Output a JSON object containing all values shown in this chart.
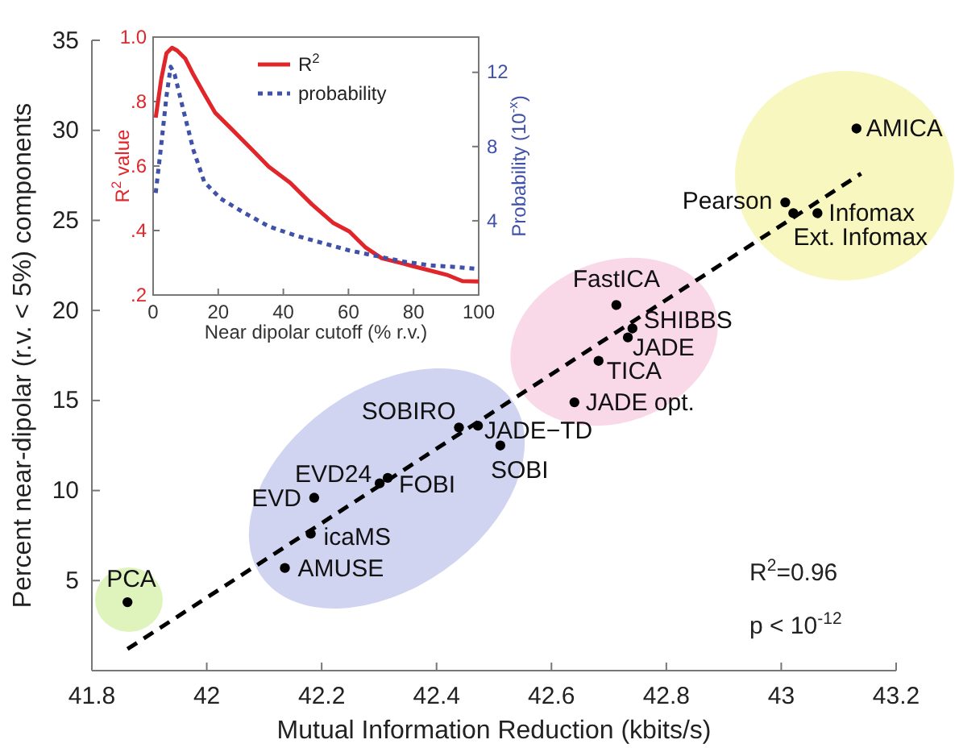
{
  "chart_data": [
    {
      "type": "scatter",
      "xlabel": "Mutual Information Reduction (kbits/s)",
      "ylabel": "Percent near-dipolar (r.v. < 5%) components",
      "xlim": [
        41.8,
        43.2
      ],
      "xticks": [
        41.8,
        42,
        42.2,
        42.4,
        42.6,
        42.8,
        43,
        43.2
      ],
      "ylim": [
        0,
        35
      ],
      "yticks": [
        5,
        10,
        15,
        20,
        25,
        30,
        35
      ],
      "grid": false,
      "legend": false,
      "series": [
        {
          "color": "#000000",
          "marker": "circle",
          "x": [
            41.862,
            42.136,
            42.181,
            42.187,
            42.301,
            42.315,
            42.439,
            42.472,
            42.511,
            42.64,
            42.682,
            42.733,
            42.741,
            42.713,
            43.007,
            43.021,
            43.063,
            43.131
          ],
          "values": [
            3.8,
            5.7,
            7.6,
            9.6,
            10.4,
            10.7,
            13.5,
            13.6,
            12.5,
            14.9,
            17.2,
            18.5,
            19.0,
            20.3,
            26.0,
            25.4,
            25.4,
            30.1
          ]
        },
        {
          "type": "line",
          "color": "#000000",
          "line_style": "dashed",
          "marker": "none",
          "x": [
            41.862,
            43.139
          ],
          "values": [
            1.2,
            27.6
          ]
        }
      ],
      "annotations": [
        {
          "text": "PCA",
          "x": 41.862,
          "y": 3.75
        },
        {
          "text": "AMUSE",
          "x": 42.136,
          "y": 5.7
        },
        {
          "text": "icaMS",
          "x": 42.181,
          "y": 7.6
        },
        {
          "text": "EVD",
          "x": 42.187,
          "y": 9.6
        },
        {
          "text": "EVD24",
          "x": 42.301,
          "y": 10.4
        },
        {
          "text": "FOBI",
          "x": 42.315,
          "y": 10.7
        },
        {
          "text": "SOBIRO",
          "x": 42.439,
          "y": 13.5
        },
        {
          "text": "JADE−TD",
          "x": 42.472,
          "y": 13.6
        },
        {
          "text": "SOBI",
          "x": 42.511,
          "y": 12.5
        },
        {
          "text": "JADE opt.",
          "x": 42.64,
          "y": 14.9
        },
        {
          "text": "TICA",
          "x": 42.682,
          "y": 17.2
        },
        {
          "text": "JADE",
          "x": 42.733,
          "y": 18.5
        },
        {
          "text": "SHIBBS",
          "x": 42.741,
          "y": 19.0
        },
        {
          "text": "FastICA",
          "x": 42.713,
          "y": 20.3
        },
        {
          "text": "Pearson",
          "x": 43.007,
          "y": 26.0
        },
        {
          "text": "Ext. Infomax",
          "x": 43.021,
          "y": 25.4
        },
        {
          "text": "Infomax",
          "x": 43.063,
          "y": 25.4
        },
        {
          "text": "AMICA",
          "x": 43.131,
          "y": 30.1
        },
        "R$^{2}$=0.96",
        "p < 10$^{-12}$"
      ]
    },
    {
      "type": "line",
      "xlabel": "Near dipolar cutoff (% r.v.)",
      "ylabel": "R$^{2}$ value",
      "y2label": "Probability  (10$^{-x}$)",
      "xlim": [
        0,
        100
      ],
      "xticks": [
        0,
        20,
        40,
        60,
        80,
        100
      ],
      "ylim": [
        0.2,
        1.0
      ],
      "yticks": [
        {
          "value": 0.2,
          "label": ".2"
        },
        {
          "value": 0.4,
          "label": ".4"
        },
        {
          "value": 0.6,
          "label": ".6"
        },
        {
          "value": 0.8,
          "label": ".8"
        },
        {
          "value": 1.0,
          "label": "1.0"
        }
      ],
      "y2lim": [
        0,
        13.9
      ],
      "y2ticks": [
        4,
        8,
        12
      ],
      "legend": "top right",
      "grid": false,
      "series": [
        {
          "name": "R$^{2}$",
          "color": "#e0262b",
          "line_style": "solid",
          "x": [
            0.8,
            2.5,
            4.1,
            5.8,
            7.4,
            9.9,
            12.4,
            15.7,
            19,
            24,
            30.6,
            35.5,
            42.1,
            48.8,
            55.4,
            60.3,
            65.3,
            70.2,
            76.9,
            83.5,
            90.1,
            95,
            100
          ],
          "values": [
            0.75,
            0.87,
            0.95,
            0.967,
            0.958,
            0.933,
            0.883,
            0.824,
            0.766,
            0.716,
            0.649,
            0.598,
            0.548,
            0.481,
            0.423,
            0.397,
            0.347,
            0.314,
            0.297,
            0.28,
            0.263,
            0.243,
            0.242
          ]
        },
        {
          "name": "probability",
          "color": "#3f51a8",
          "line_style": "dotted",
          "axis": "y2",
          "x": [
            0.8,
            2.5,
            4.1,
            5.4,
            6.6,
            9.1,
            12.4,
            15.7,
            20.7,
            27.3,
            35.5,
            43.8,
            52.1,
            60.3,
            68.6,
            76.9,
            85.1,
            93.4,
            100
          ],
          "values": [
            5.5,
            8.1,
            10.7,
            12.3,
            11.9,
            10.1,
            7.8,
            6.1,
            5.2,
            4.5,
            3.7,
            3.2,
            2.8,
            2.4,
            2.1,
            1.8,
            1.6,
            1.5,
            1.4
          ]
        }
      ]
    }
  ]
}
